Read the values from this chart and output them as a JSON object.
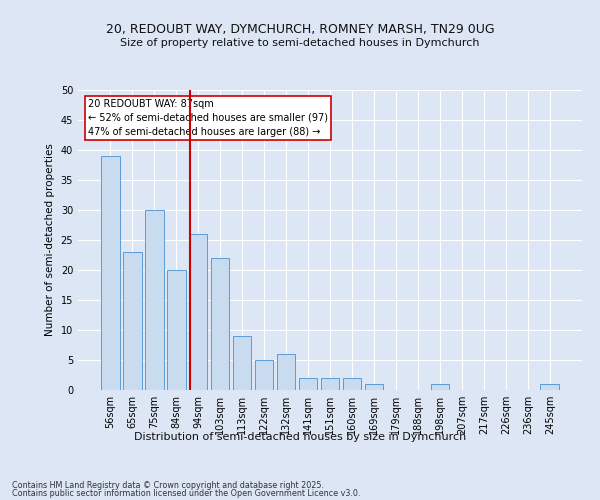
{
  "title_line1": "20, REDOUBT WAY, DYMCHURCH, ROMNEY MARSH, TN29 0UG",
  "title_line2": "Size of property relative to semi-detached houses in Dymchurch",
  "categories": [
    "56sqm",
    "65sqm",
    "75sqm",
    "84sqm",
    "94sqm",
    "103sqm",
    "113sqm",
    "122sqm",
    "132sqm",
    "141sqm",
    "151sqm",
    "160sqm",
    "169sqm",
    "179sqm",
    "188sqm",
    "198sqm",
    "207sqm",
    "217sqm",
    "226sqm",
    "236sqm",
    "245sqm"
  ],
  "values": [
    39,
    23,
    30,
    20,
    26,
    22,
    9,
    5,
    6,
    2,
    2,
    2,
    1,
    0,
    0,
    1,
    0,
    0,
    0,
    0,
    1
  ],
  "bar_color": "#c9dcef",
  "bar_edge_color": "#5b9bd5",
  "background_color": "#dce6f5",
  "plot_bg_color": "#dce6f5",
  "grid_color": "#ffffff",
  "ylabel": "Number of semi-detached properties",
  "xlabel": "Distribution of semi-detached houses by size in Dymchurch",
  "ylim": [
    0,
    50
  ],
  "yticks": [
    0,
    5,
    10,
    15,
    20,
    25,
    30,
    35,
    40,
    45,
    50
  ],
  "vline_x": 3.62,
  "vline_color": "#cc0000",
  "annotation_title": "20 REDOUBT WAY: 87sqm",
  "annotation_line1": "← 52% of semi-detached houses are smaller (97)",
  "annotation_line2": "47% of semi-detached houses are larger (88) →",
  "annotation_box_color": "#ffffff",
  "annotation_box_edge": "#cc0000",
  "footnote_line1": "Contains HM Land Registry data © Crown copyright and database right 2025.",
  "footnote_line2": "Contains public sector information licensed under the Open Government Licence v3.0."
}
